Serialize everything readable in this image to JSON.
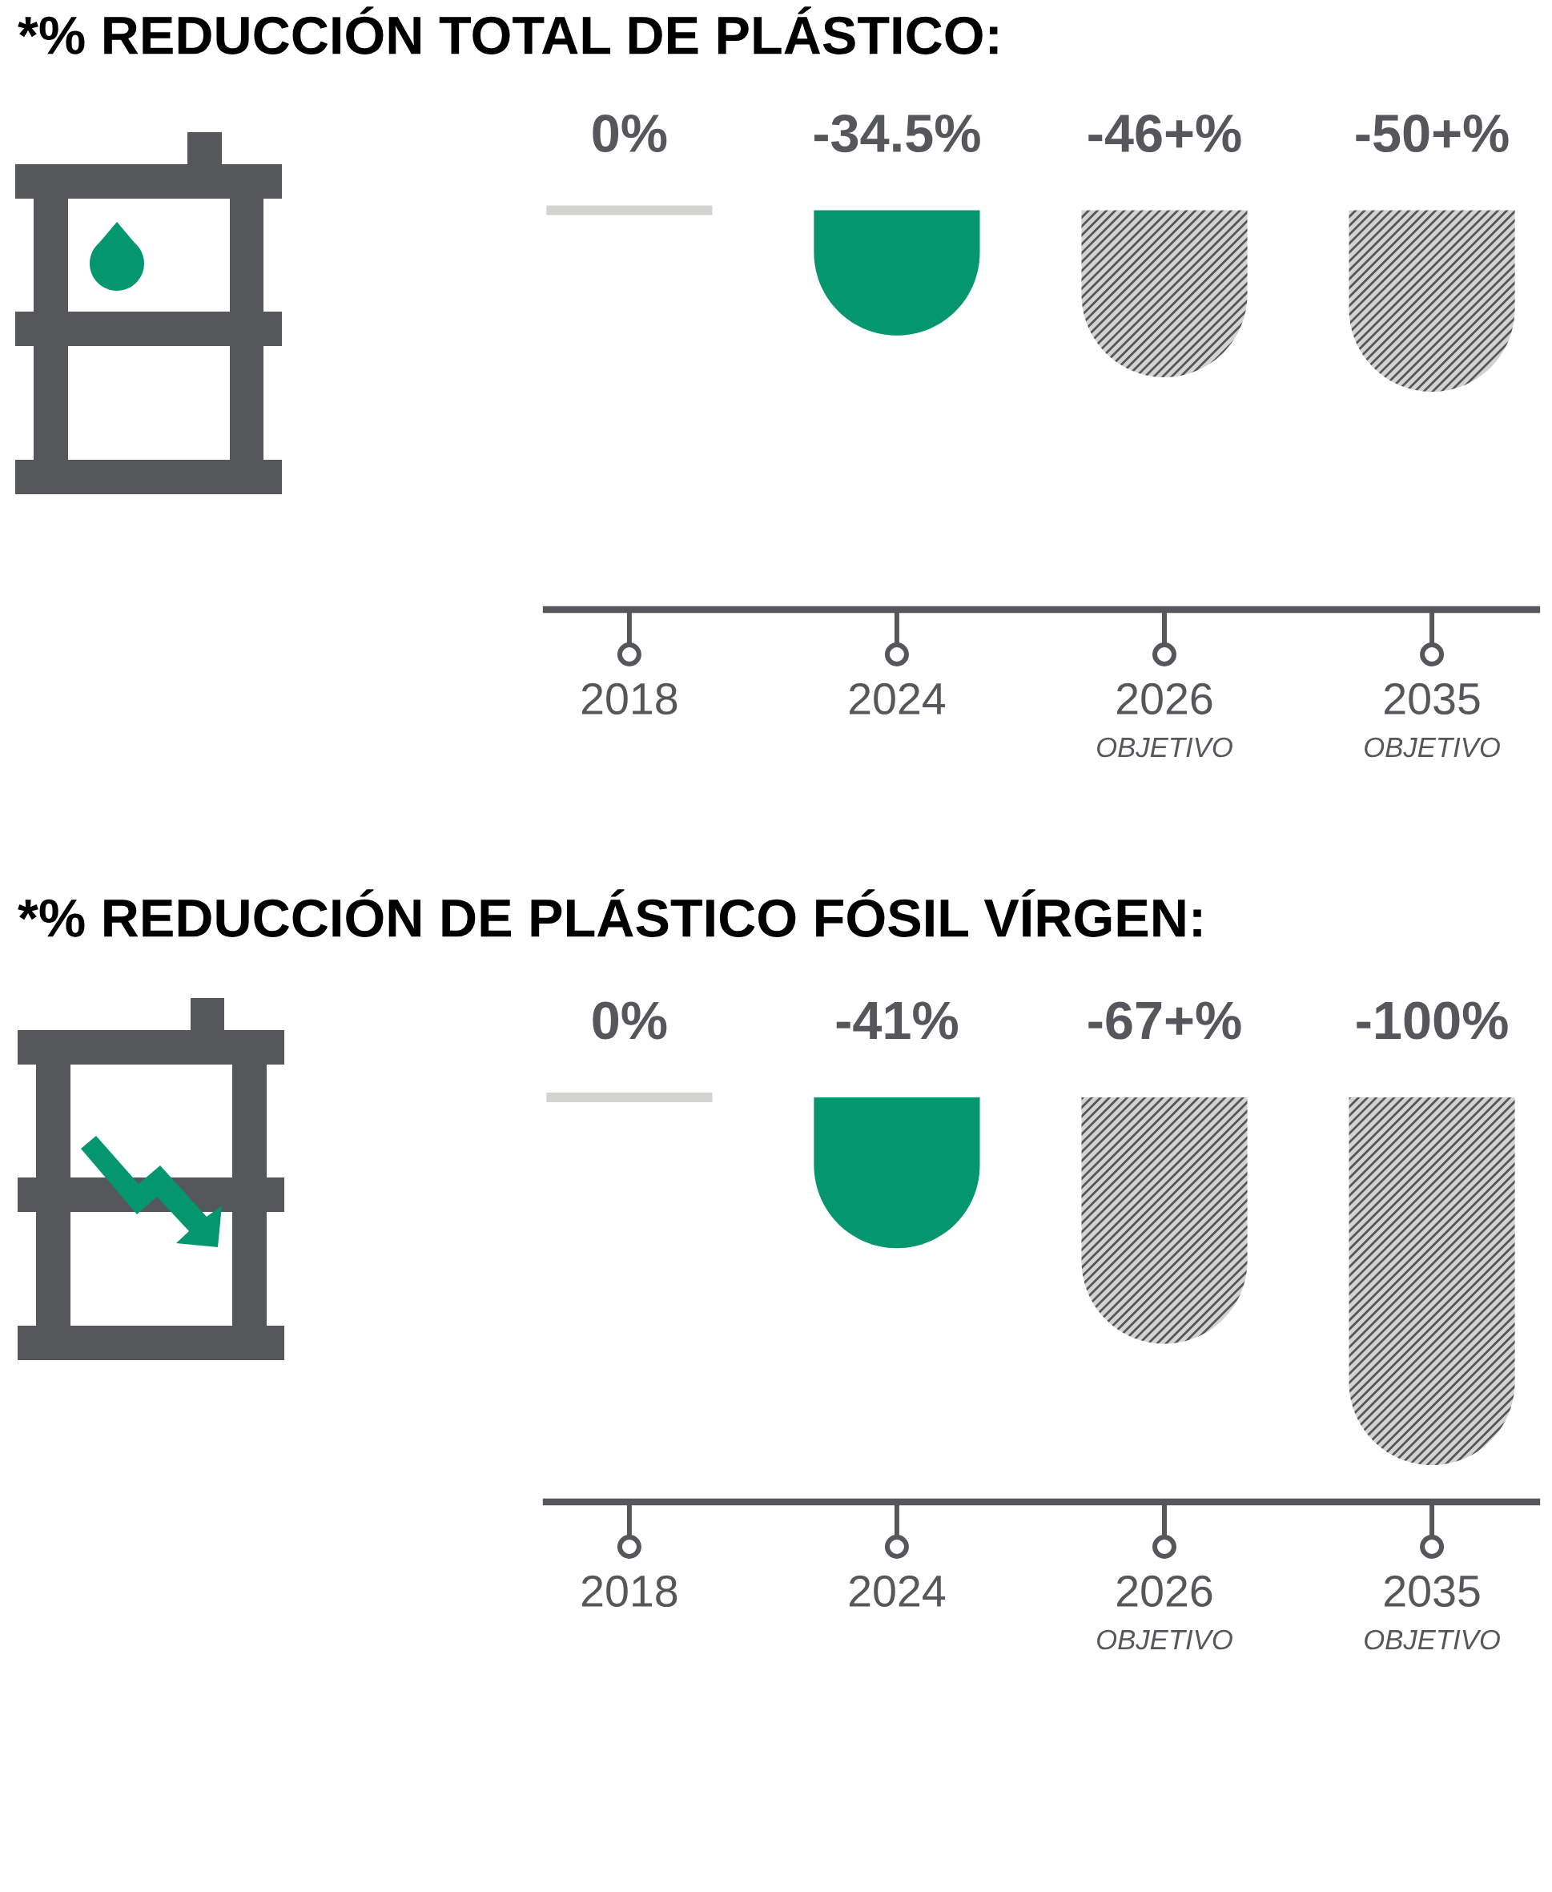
{
  "chart_data": [
    {
      "type": "bar",
      "title": "*% REDUCCIÓN TOTAL DE PLÁSTICO:",
      "categories": [
        "2018",
        "2024",
        "2026\nOBJETIVO",
        "2035\nOBJETIVO"
      ],
      "values": [
        0,
        -34.5,
        -46,
        -50
      ],
      "colors": [
        "#d3d3cf",
        "#04966f",
        "#d3d3cf",
        "#d3d3cf"
      ],
      "value_labels": [
        "0%",
        "-34.5%",
        "-46+%",
        "-50+%"
      ],
      "ylim": [
        -110,
        0
      ],
      "tick_labels": "x"
    },
    {
      "type": "bar",
      "title": "*% REDUCCIÓN DE PLÁSTICO FÓSIL VÍRGEN:",
      "categories": [
        "2018",
        "2024",
        "2026\nOBJETIVO",
        "2035\nOBJETIVO"
      ],
      "values": [
        0,
        -41,
        -67,
        -100
      ],
      "colors": [
        "#d3d3cf",
        "#04966f",
        "#d3d3cf",
        "#d3d3cf"
      ],
      "value_labels": [
        "0%",
        "-41%",
        "-67+%",
        "-100%"
      ],
      "ylim": [
        -110,
        0
      ],
      "tick_labels": "x"
    }
  ]
}
